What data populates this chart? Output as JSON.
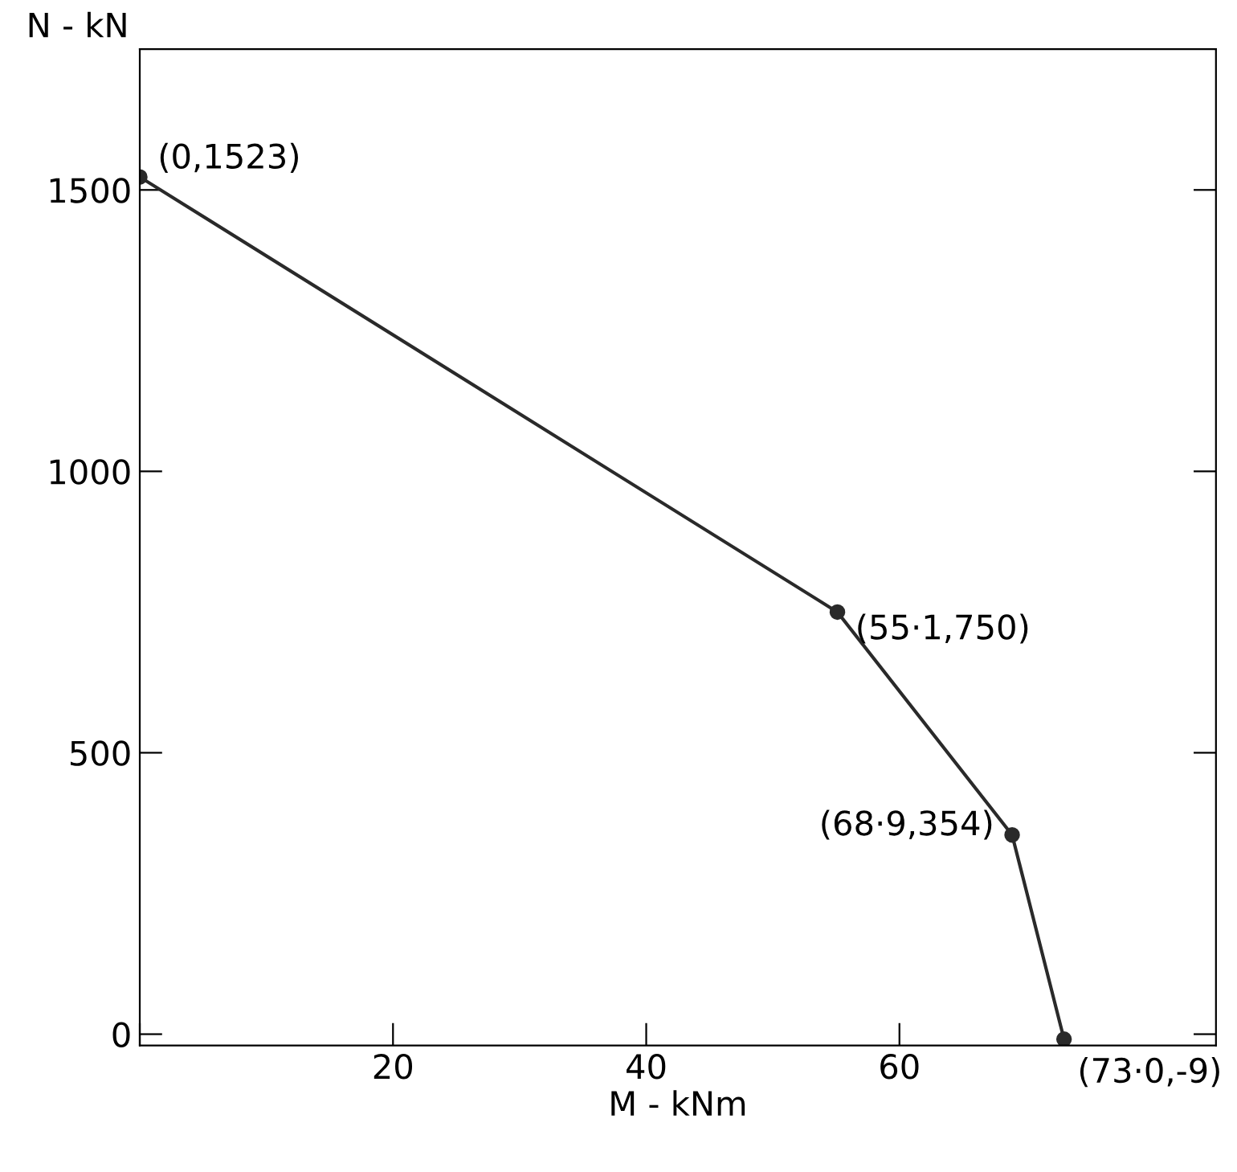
{
  "chart_data": {
    "type": "line",
    "xlabel": "M - kNm",
    "ylabel": "N - kN",
    "x": [
      0,
      55.1,
      68.9,
      73.0
    ],
    "series": [
      {
        "color": "#2a2a2a",
        "values": [
          1523,
          750,
          354,
          -9
        ]
      }
    ],
    "annotations": [
      {
        "text": "(0,1523)",
        "x": 0,
        "y": 1523
      },
      {
        "text": "(55·1,750)",
        "x": 55.1,
        "y": 750
      },
      {
        "text": "(68·9,354)",
        "x": 68.9,
        "y": 354
      },
      {
        "text": "(73·0,-9)",
        "x": 73.0,
        "y": -9
      }
    ],
    "xlim": [
      0,
      85
    ],
    "ylim": [
      -20,
      1750
    ],
    "xticks": [
      {
        "value": 0,
        "label": null
      },
      20,
      40,
      60
    ],
    "yticks": [
      0,
      500,
      1000,
      1500
    ],
    "marker": "circle",
    "line_style": "solid",
    "grid": false,
    "legend": false
  }
}
